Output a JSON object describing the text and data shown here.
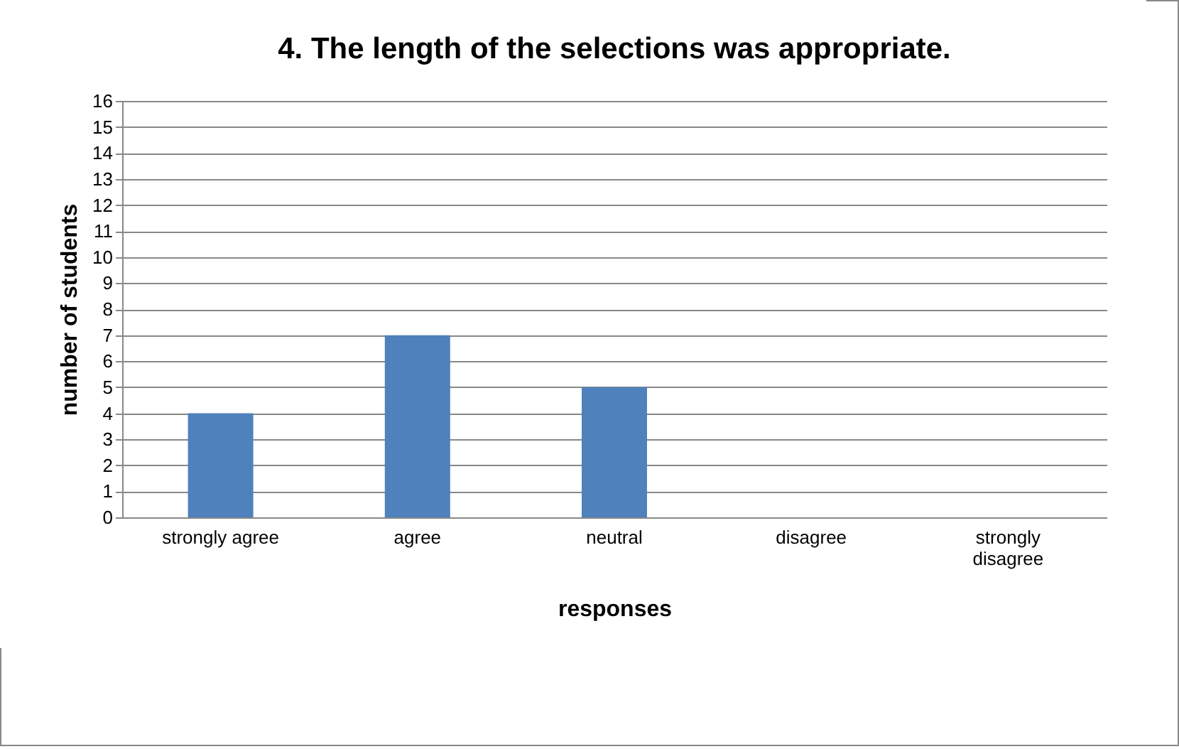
{
  "chart_data": {
    "type": "bar",
    "title": "4. The length of the selections was appropriate.",
    "xlabel": "responses",
    "ylabel": "number of students",
    "categories": [
      "strongly agree",
      "agree",
      "neutral",
      "disagree",
      "strongly disagree"
    ],
    "values": [
      4,
      7,
      5,
      0,
      0
    ],
    "color": "#4f81bd",
    "ylim": [
      0,
      16
    ],
    "yticks": [
      0,
      1,
      2,
      3,
      4,
      5,
      6,
      7,
      8,
      9,
      10,
      11,
      12,
      13,
      14,
      15,
      16
    ],
    "grid": "y"
  }
}
